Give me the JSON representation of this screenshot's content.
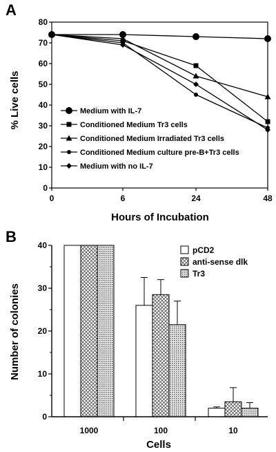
{
  "chart_data": [
    {
      "panel": "A",
      "type": "line",
      "xlabel": "Hours of Incubation",
      "ylabel": "% Live cells",
      "x": [
        0,
        6,
        24,
        48
      ],
      "xtick_labels": [
        "0",
        "6",
        "24",
        "48"
      ],
      "ylim": [
        0,
        80
      ],
      "yticks": [
        0,
        10,
        20,
        30,
        40,
        50,
        60,
        70,
        80
      ],
      "grid": false,
      "legend_position": "bottom-left",
      "series": [
        {
          "name": "Medium with IL-7",
          "marker": "circle-large",
          "values": [
            74,
            74,
            73,
            72
          ]
        },
        {
          "name": "Conditioned Medium Tr3 cells",
          "marker": "square",
          "values": [
            74,
            71,
            59,
            32
          ]
        },
        {
          "name": "Conditioned Medium Irradiated Tr3 cells",
          "marker": "triangle",
          "values": [
            74,
            72,
            54,
            44
          ]
        },
        {
          "name": "Conditioned Medium culture pre-B+Tr3 cells",
          "marker": "circle-small",
          "values": [
            74,
            70,
            45,
            29
          ]
        },
        {
          "name": "Medium with no IL-7",
          "marker": "diamond",
          "values": [
            74,
            69,
            50,
            28
          ]
        }
      ]
    },
    {
      "panel": "B",
      "type": "bar",
      "xlabel": "Cells",
      "ylabel": "Number of colonies",
      "categories": [
        "1000",
        "100",
        "10"
      ],
      "ylim": [
        0,
        40
      ],
      "yticks": [
        0,
        10,
        20,
        30,
        40
      ],
      "grid": false,
      "legend_position": "top-right",
      "series": [
        {
          "name": "pCD2",
          "pattern": "white",
          "values": [
            40,
            26,
            2
          ],
          "errors": [
            0,
            6.5,
            0.3
          ]
        },
        {
          "name": "anti-sense dlk",
          "pattern": "crosshatch",
          "values": [
            40,
            28.5,
            3.5
          ],
          "errors": [
            0,
            3.5,
            3.3
          ]
        },
        {
          "name": "Tr3",
          "pattern": "dots",
          "values": [
            40,
            21.5,
            2
          ],
          "errors": [
            0,
            5.5,
            1.3
          ]
        }
      ]
    }
  ]
}
